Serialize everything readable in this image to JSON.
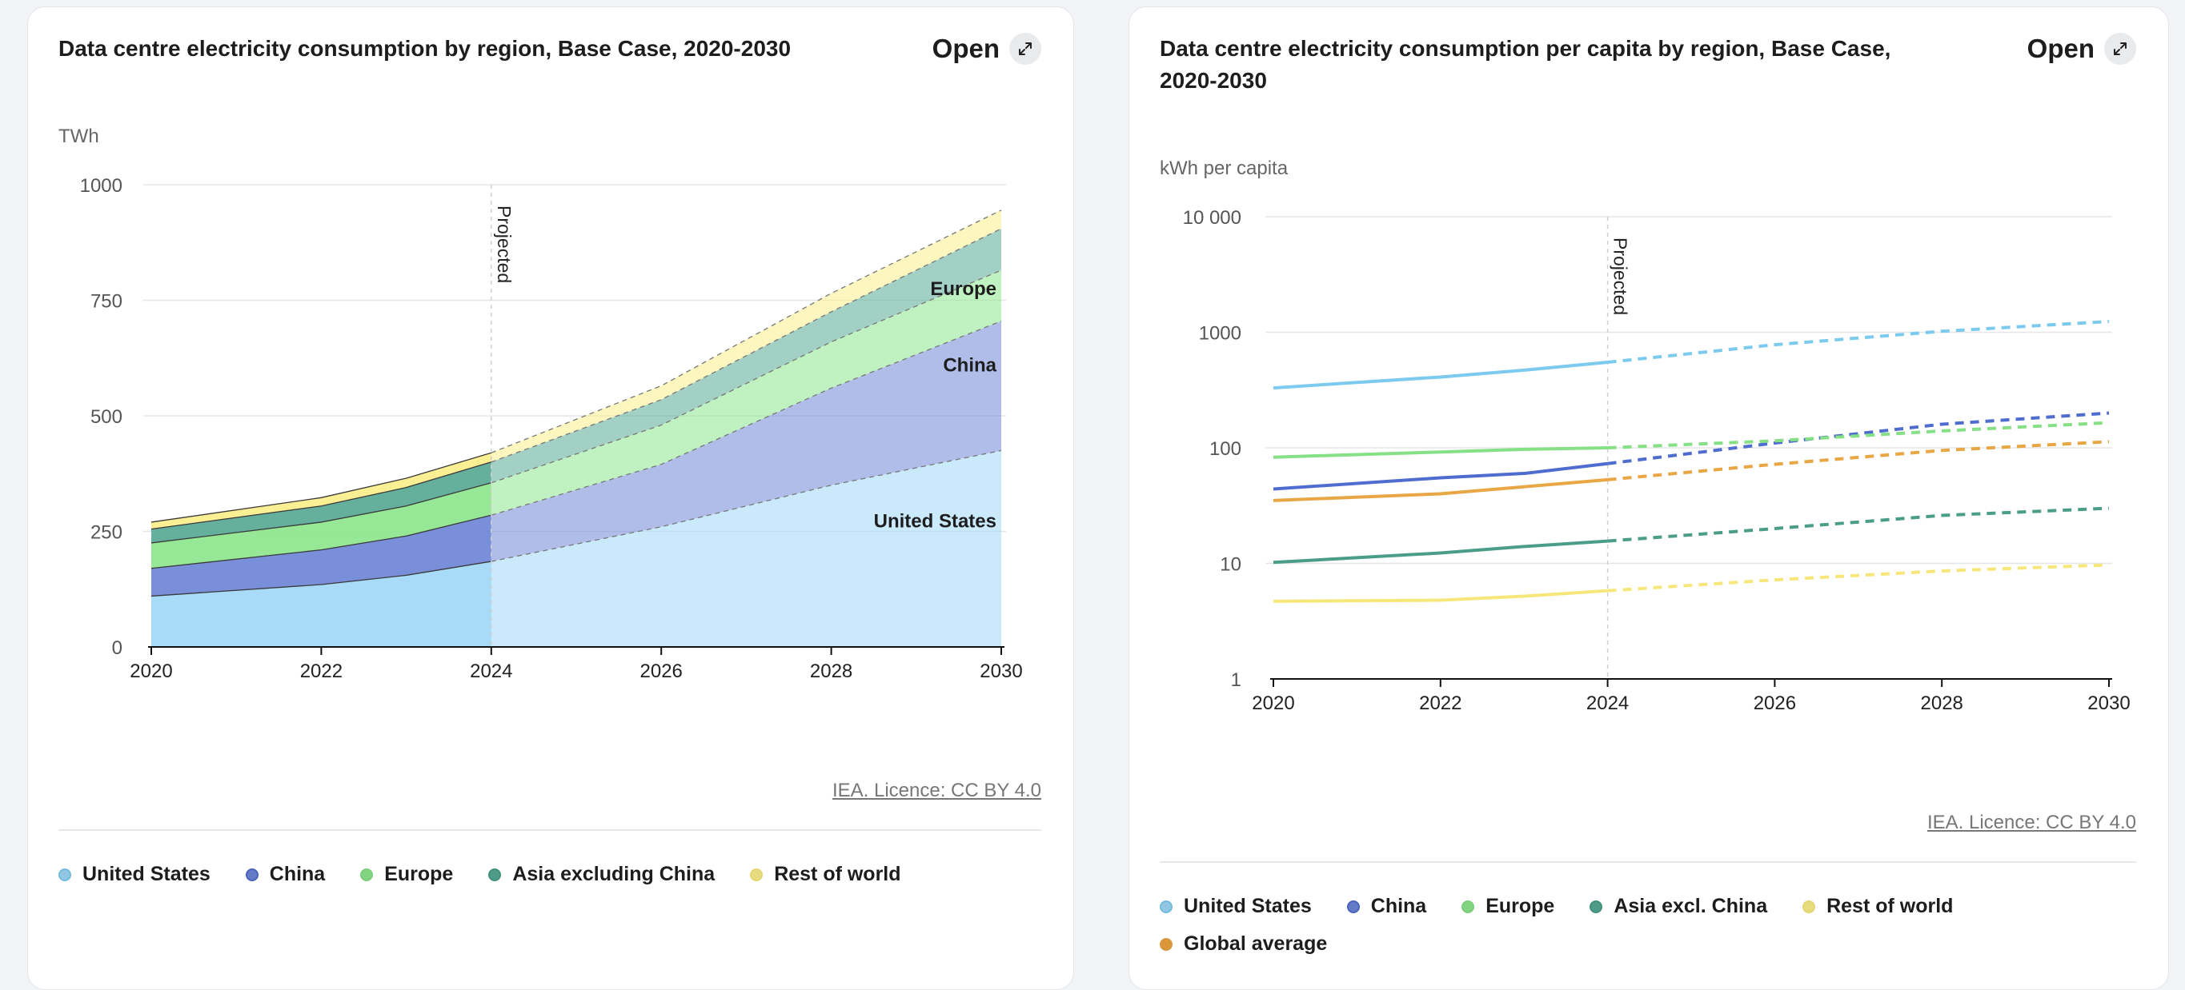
{
  "open_label": "Open",
  "icons": {
    "open": "expand-arrows-icon"
  },
  "colors": {
    "us": "#9fd8f7",
    "china": "#6f86d6",
    "europe": "#8de58d",
    "asia": "#57a995",
    "row": "#fbee8a",
    "global": "#eda33c",
    "us_line": "#7ccbef",
    "china_line": "#4f6ccf",
    "europe_line": "#86e086",
    "asia_line": "#4a9d87",
    "row_line": "#f7e77a",
    "global_line": "#e9a645"
  },
  "chart_data": [
    {
      "type": "area",
      "title": "Data centre electricity consumption by region, Base Case, 2020-2030",
      "ylabel": "TWh",
      "ylim": [
        0,
        1000
      ],
      "yticks": [
        0,
        250,
        500,
        750,
        1000
      ],
      "xlim": [
        2020,
        2030
      ],
      "xticks": [
        2020,
        2022,
        2024,
        2026,
        2028,
        2030
      ],
      "projection_start": 2024,
      "projection_label": "Projected",
      "x": [
        2020,
        2022,
        2023,
        2024,
        2026,
        2028,
        2030
      ],
      "stacked": true,
      "series": [
        {
          "key": "us",
          "name": "United States",
          "values": [
            110,
            135,
            155,
            185,
            260,
            350,
            425
          ],
          "label": "United States"
        },
        {
          "key": "china",
          "name": "China",
          "values": [
            60,
            75,
            85,
            100,
            135,
            210,
            280
          ],
          "label": "China"
        },
        {
          "key": "europe",
          "name": "Europe",
          "values": [
            55,
            60,
            65,
            70,
            85,
            100,
            110
          ],
          "label": "Europe"
        },
        {
          "key": "asia",
          "name": "Asia excluding China",
          "values": [
            30,
            35,
            40,
            45,
            55,
            65,
            90
          ],
          "label": ""
        },
        {
          "key": "row",
          "name": "Rest of world",
          "values": [
            15,
            18,
            20,
            20,
            30,
            40,
            40
          ],
          "label": ""
        }
      ],
      "source": "IEA. Licence: CC BY 4.0"
    },
    {
      "type": "line",
      "title": "Data centre electricity consumption per capita by region, Base Case, 2020-2030",
      "ylabel": "kWh per capita",
      "yscale": "log",
      "ylim": [
        1,
        10000
      ],
      "yticks": [
        1,
        10,
        100,
        1000,
        10000
      ],
      "ytick_labels": [
        "1",
        "10",
        "100",
        "1000",
        "10 000"
      ],
      "xlim": [
        2020,
        2030
      ],
      "xticks": [
        2020,
        2022,
        2024,
        2026,
        2028,
        2030
      ],
      "projection_start": 2024,
      "projection_label": "Projected",
      "x": [
        2020,
        2022,
        2023,
        2024,
        2026,
        2028,
        2030
      ],
      "series": [
        {
          "key": "us",
          "name": "United States",
          "values": [
            330,
            410,
            470,
            550,
            780,
            1020,
            1240
          ]
        },
        {
          "key": "china",
          "name": "China",
          "values": [
            44,
            55,
            60,
            73,
            110,
            160,
            200
          ]
        },
        {
          "key": "europe",
          "name": "Europe",
          "values": [
            83,
            92,
            97,
            100,
            115,
            140,
            165
          ]
        },
        {
          "key": "asia",
          "name": "Asia excl. China",
          "values": [
            10.2,
            12.3,
            14,
            15.6,
            20,
            26,
            30
          ]
        },
        {
          "key": "row",
          "name": "Rest of world",
          "values": [
            4.7,
            4.8,
            5.2,
            5.8,
            7.2,
            8.6,
            9.7
          ]
        },
        {
          "key": "global",
          "name": "Global average",
          "values": [
            35,
            40,
            46,
            53,
            72,
            95,
            113
          ]
        }
      ],
      "source": "IEA. Licence: CC BY 4.0"
    }
  ]
}
